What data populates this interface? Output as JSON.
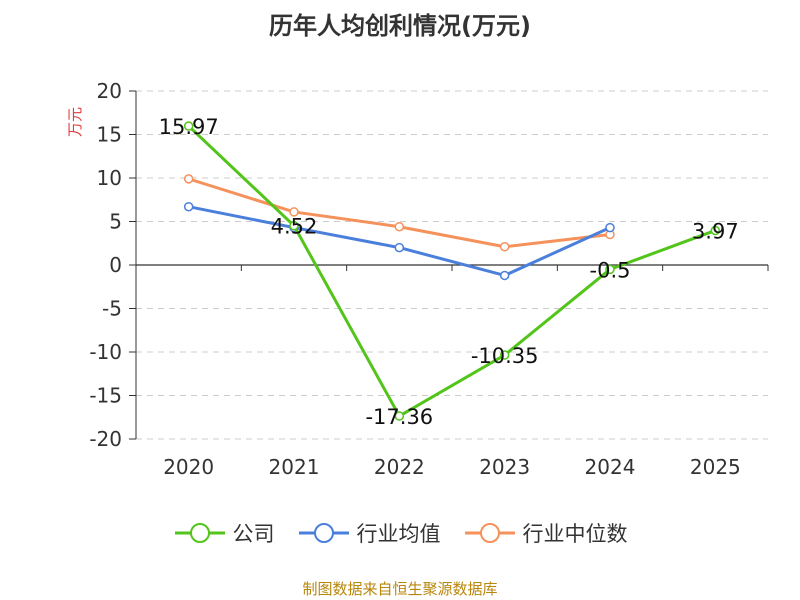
{
  "chart_data": {
    "type": "line",
    "title": "历年人均创利情况(万元)",
    "ylabel": "万元",
    "categories": [
      "2020",
      "2021",
      "2022",
      "2023",
      "2024",
      "2025"
    ],
    "ylim": [
      -20,
      20
    ],
    "yticks": [
      20,
      15,
      10,
      5,
      0,
      -5,
      -10,
      -15,
      -20
    ],
    "grid": true,
    "legend_position": "bottom",
    "series": [
      {
        "name": "公司",
        "color": "#52c41a",
        "values": [
          15.97,
          4.52,
          -17.36,
          -10.35,
          -0.5,
          3.97
        ],
        "labels": [
          "15.97",
          "4.52",
          "-17.36",
          "-10.35",
          "-0.5",
          "3.97"
        ]
      },
      {
        "name": "行业均值",
        "color": "#4a7fdb",
        "values": [
          6.7,
          4.3,
          2.0,
          -1.2,
          4.3,
          null
        ]
      },
      {
        "name": "行业中位数",
        "color": "#f5915a",
        "values": [
          9.9,
          6.1,
          4.4,
          2.1,
          3.5,
          null
        ]
      }
    ]
  },
  "source": "制图数据来自恒生聚源数据库"
}
